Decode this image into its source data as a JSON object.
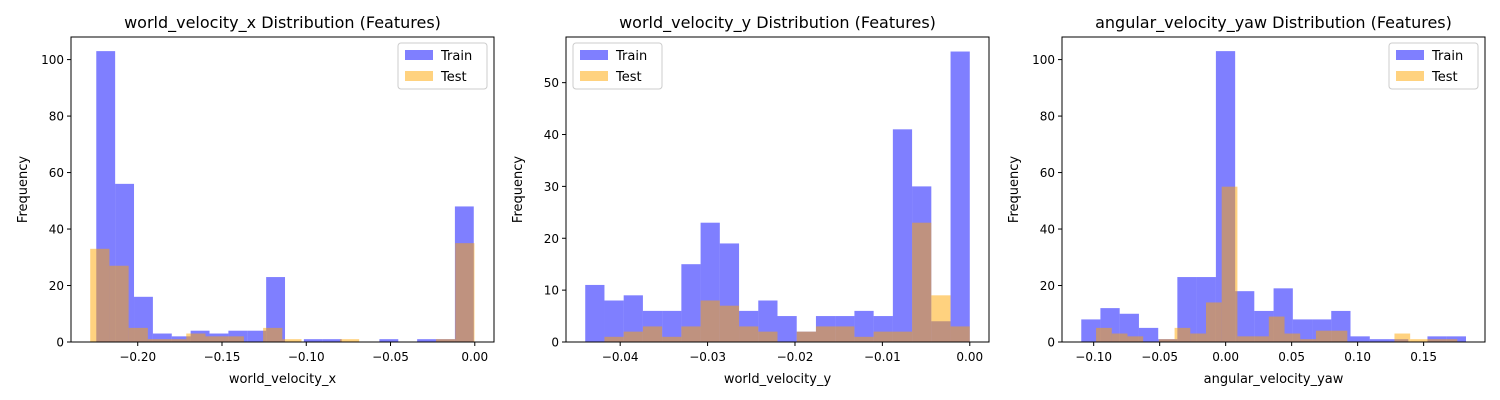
{
  "chart_data": [
    {
      "type": "histogram",
      "title": "world_velocity_x Distribution (Features)",
      "xlabel": "world_velocity_x",
      "ylabel": "Frequency",
      "xlim": [
        -0.2396,
        0.0114
      ],
      "ylim": [
        0,
        108
      ],
      "xticks": [
        -0.2,
        -0.15,
        -0.1,
        -0.05,
        0.0
      ],
      "xtick_labels": [
        "−0.20",
        "−0.15",
        "−0.10",
        "−0.05",
        "0.00"
      ],
      "yticks": [
        0,
        20,
        40,
        60,
        80,
        100
      ],
      "ytick_labels": [
        "0",
        "20",
        "40",
        "60",
        "80",
        "100"
      ],
      "legend": {
        "position": "top-right",
        "entries": [
          "Train",
          "Test"
        ]
      },
      "grid": false,
      "series": [
        {
          "name": "Train",
          "color": "#0000ff",
          "opacity": 0.5,
          "bins": [
            [
              -0.2246,
              -0.2134,
              103
            ],
            [
              -0.2134,
              -0.2022,
              56
            ],
            [
              -0.2022,
              -0.191,
              16
            ],
            [
              -0.191,
              -0.1798,
              3
            ],
            [
              -0.1798,
              -0.1686,
              2
            ],
            [
              -0.1686,
              -0.1574,
              4
            ],
            [
              -0.1574,
              -0.1462,
              3
            ],
            [
              -0.1462,
              -0.135,
              4
            ],
            [
              -0.135,
              -0.1238,
              4
            ],
            [
              -0.1238,
              -0.1126,
              23
            ],
            [
              -0.1126,
              -0.1014,
              0
            ],
            [
              -0.1014,
              -0.0902,
              1
            ],
            [
              -0.0902,
              -0.079,
              1
            ],
            [
              -0.079,
              -0.0678,
              0
            ],
            [
              -0.0678,
              -0.0566,
              0
            ],
            [
              -0.0566,
              -0.0454,
              1
            ],
            [
              -0.0454,
              -0.0342,
              0
            ],
            [
              -0.0342,
              -0.023,
              1
            ],
            [
              -0.023,
              -0.0118,
              1
            ],
            [
              -0.0118,
              -0.0006,
              48
            ]
          ]
        },
        {
          "name": "Test",
          "color": "#ffa500",
          "opacity": 0.5,
          "bins": [
            [
              -0.2282,
              -0.2168,
              33
            ],
            [
              -0.2168,
              -0.2054,
              27
            ],
            [
              -0.2054,
              -0.194,
              5
            ],
            [
              -0.194,
              -0.1826,
              1
            ],
            [
              -0.1826,
              -0.1712,
              1
            ],
            [
              -0.1712,
              -0.1598,
              3
            ],
            [
              -0.1598,
              -0.1484,
              2
            ],
            [
              -0.1484,
              -0.137,
              2
            ],
            [
              -0.137,
              -0.1256,
              0
            ],
            [
              -0.1256,
              -0.1142,
              5
            ],
            [
              -0.1142,
              -0.1028,
              1
            ],
            [
              -0.1028,
              -0.0914,
              0
            ],
            [
              -0.0914,
              -0.08,
              0
            ],
            [
              -0.08,
              -0.0686,
              1
            ],
            [
              -0.0686,
              -0.0572,
              0
            ],
            [
              -0.0572,
              -0.0458,
              0
            ],
            [
              -0.0458,
              -0.0344,
              0
            ],
            [
              -0.0344,
              -0.023,
              0
            ],
            [
              -0.023,
              -0.0116,
              1
            ],
            [
              -0.0116,
              -0.0002,
              35
            ]
          ]
        }
      ]
    },
    {
      "type": "histogram",
      "title": "world_velocity_y Distribution (Features)",
      "xlabel": "world_velocity_y",
      "ylabel": "Frequency",
      "xlim": [
        -0.0462,
        0.0022
      ],
      "ylim": [
        0,
        58.8
      ],
      "xticks": [
        -0.04,
        -0.03,
        -0.02,
        -0.01,
        0.0
      ],
      "xtick_labels": [
        "−0.04",
        "−0.03",
        "−0.02",
        "−0.01",
        "0.00"
      ],
      "yticks": [
        0,
        10,
        20,
        30,
        40,
        50
      ],
      "ytick_labels": [
        "0",
        "10",
        "20",
        "30",
        "40",
        "50"
      ],
      "legend": {
        "position": "top-left",
        "entries": [
          "Train",
          "Test"
        ]
      },
      "grid": false,
      "series": [
        {
          "name": "Train",
          "color": "#0000ff",
          "opacity": 0.5,
          "bins": [
            [
              -0.044,
              -0.0418,
              11
            ],
            [
              -0.0418,
              -0.0396,
              8
            ],
            [
              -0.0396,
              -0.0374,
              9
            ],
            [
              -0.0374,
              -0.0352,
              6
            ],
            [
              -0.0352,
              -0.033,
              6
            ],
            [
              -0.033,
              -0.0308,
              15
            ],
            [
              -0.0308,
              -0.0286,
              23
            ],
            [
              -0.0286,
              -0.0264,
              19
            ],
            [
              -0.0264,
              -0.0242,
              6
            ],
            [
              -0.0242,
              -0.022,
              8
            ],
            [
              -0.022,
              -0.0198,
              5
            ],
            [
              -0.0198,
              -0.0176,
              2
            ],
            [
              -0.0176,
              -0.0154,
              5
            ],
            [
              -0.0154,
              -0.0132,
              5
            ],
            [
              -0.0132,
              -0.011,
              6
            ],
            [
              -0.011,
              -0.0088,
              5
            ],
            [
              -0.0088,
              -0.0066,
              41
            ],
            [
              -0.0066,
              -0.0044,
              30
            ],
            [
              -0.0044,
              -0.0022,
              4
            ],
            [
              -0.0022,
              0.0,
              56
            ]
          ]
        },
        {
          "name": "Test",
          "color": "#ffa500",
          "opacity": 0.5,
          "bins": [
            [
              -0.0418,
              -0.0396,
              1
            ],
            [
              -0.0396,
              -0.0374,
              2
            ],
            [
              -0.0374,
              -0.0352,
              3
            ],
            [
              -0.0352,
              -0.033,
              1
            ],
            [
              -0.033,
              -0.0308,
              3
            ],
            [
              -0.0308,
              -0.0286,
              8
            ],
            [
              -0.0286,
              -0.0264,
              7
            ],
            [
              -0.0264,
              -0.0242,
              3
            ],
            [
              -0.0242,
              -0.022,
              2
            ],
            [
              -0.022,
              -0.0198,
              0
            ],
            [
              -0.0198,
              -0.0176,
              2
            ],
            [
              -0.0176,
              -0.0154,
              3
            ],
            [
              -0.0154,
              -0.0132,
              3
            ],
            [
              -0.0132,
              -0.011,
              1
            ],
            [
              -0.011,
              -0.0088,
              2
            ],
            [
              -0.0088,
              -0.0066,
              2
            ],
            [
              -0.0066,
              -0.0044,
              23
            ],
            [
              -0.0044,
              -0.0022,
              9
            ],
            [
              -0.0022,
              0.0,
              3
            ],
            [
              0.0,
              0.0,
              0
            ]
          ]
        }
      ]
    },
    {
      "type": "histogram",
      "title": "angular_velocity_yaw Distribution (Features)",
      "xlabel": "angular_velocity_yaw",
      "ylabel": "Frequency",
      "xlim": [
        -0.124,
        0.1965
      ],
      "ylim": [
        0,
        108
      ],
      "xticks": [
        -0.1,
        -0.05,
        0.0,
        0.05,
        0.1,
        0.15
      ],
      "xtick_labels": [
        "−0.10",
        "−0.05",
        "0.00",
        "0.05",
        "0.10",
        "0.15"
      ],
      "yticks": [
        0,
        20,
        40,
        60,
        80,
        100
      ],
      "ytick_labels": [
        "0",
        "20",
        "40",
        "60",
        "80",
        "100"
      ],
      "legend": {
        "position": "top-right",
        "entries": [
          "Train",
          "Test"
        ]
      },
      "grid": false,
      "series": [
        {
          "name": "Train",
          "color": "#0000ff",
          "opacity": 0.5,
          "bins": [
            [
              -0.1094,
              -0.0949,
              8
            ],
            [
              -0.0949,
              -0.0803,
              12
            ],
            [
              -0.0803,
              -0.0657,
              10
            ],
            [
              -0.0657,
              -0.0511,
              5
            ],
            [
              -0.0511,
              -0.0366,
              1
            ],
            [
              -0.0366,
              -0.022,
              23
            ],
            [
              -0.022,
              -0.0074,
              23
            ],
            [
              -0.0074,
              0.0072,
              103
            ],
            [
              0.0072,
              0.0217,
              18
            ],
            [
              0.0217,
              0.0363,
              11
            ],
            [
              0.0363,
              0.0509,
              19
            ],
            [
              0.0509,
              0.0655,
              8
            ],
            [
              0.0655,
              0.08,
              8
            ],
            [
              0.08,
              0.0946,
              11
            ],
            [
              0.0946,
              0.1092,
              2
            ],
            [
              0.1092,
              0.1238,
              1
            ],
            [
              0.1238,
              0.1384,
              1
            ],
            [
              0.1384,
              0.1529,
              0
            ],
            [
              0.1529,
              0.1675,
              2
            ],
            [
              0.1675,
              0.1821,
              2
            ]
          ]
        },
        {
          "name": "Test",
          "color": "#ffa500",
          "opacity": 0.5,
          "bins": [
            [
              -0.0982,
              -0.0863,
              5
            ],
            [
              -0.0863,
              -0.0744,
              3
            ],
            [
              -0.0744,
              -0.0625,
              2
            ],
            [
              -0.0625,
              -0.0506,
              0
            ],
            [
              -0.0506,
              -0.0387,
              1
            ],
            [
              -0.0387,
              -0.0268,
              5
            ],
            [
              -0.0268,
              -0.0149,
              3
            ],
            [
              -0.0149,
              -0.003,
              14
            ],
            [
              -0.003,
              0.0089,
              55
            ],
            [
              0.0089,
              0.0208,
              2
            ],
            [
              0.0208,
              0.0327,
              2
            ],
            [
              0.0327,
              0.0446,
              9
            ],
            [
              0.0446,
              0.0565,
              3
            ],
            [
              0.0565,
              0.0684,
              1
            ],
            [
              0.0684,
              0.0803,
              4
            ],
            [
              0.0803,
              0.0922,
              4
            ],
            [
              0.0922,
              0.1041,
              0
            ],
            [
              0.1041,
              0.116,
              0
            ],
            [
              0.116,
              0.1279,
              0
            ],
            [
              0.1279,
              0.1398,
              3
            ],
            [
              0.1398,
              0.1517,
              1
            ],
            [
              0.1517,
              0.1636,
              1
            ],
            [
              0.1636,
              0.1755,
              1
            ]
          ]
        }
      ]
    }
  ]
}
